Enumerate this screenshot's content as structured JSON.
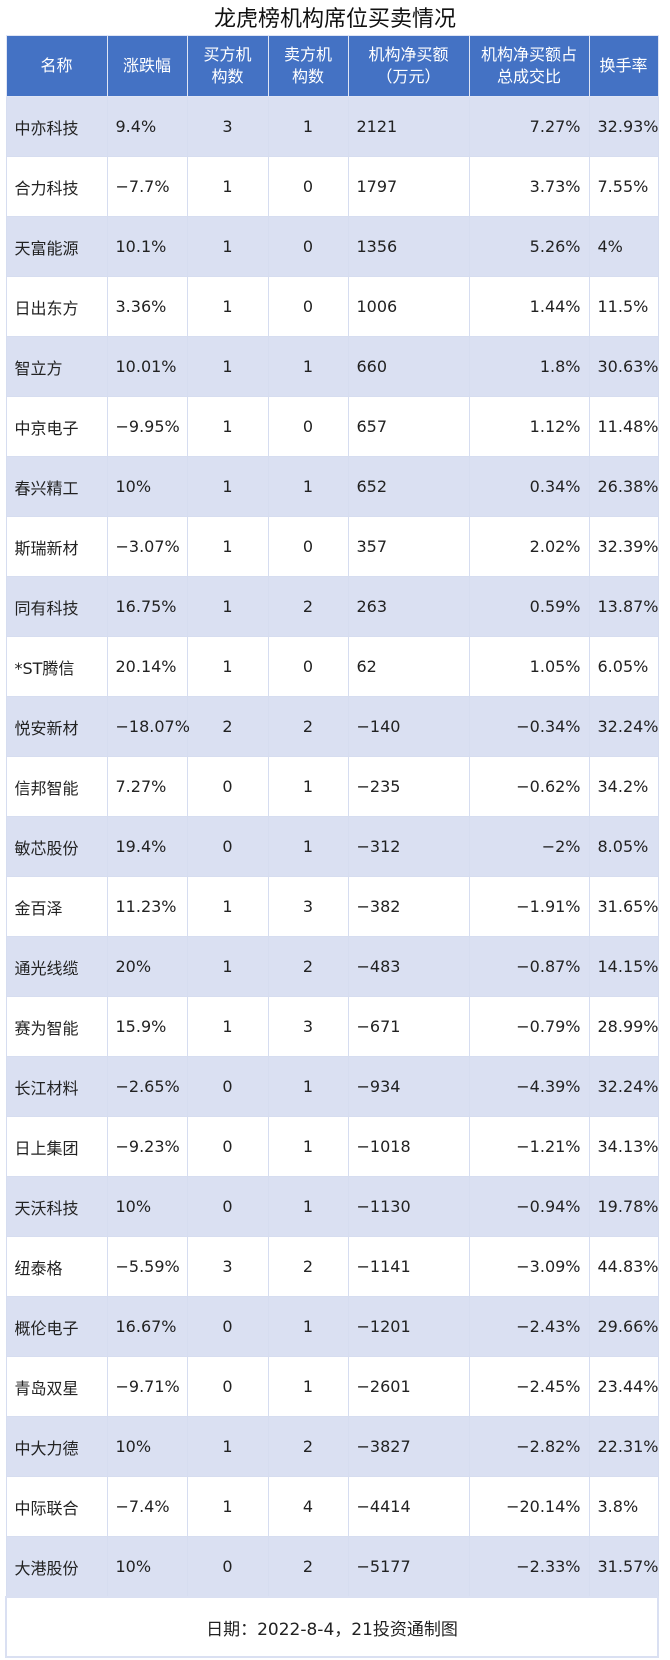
{
  "title": "龙虎榜机构席位买卖情况",
  "headers": [
    "名称",
    "涨跌幅",
    "买方机构数",
    "卖方机构数",
    "机构净买额（万元）",
    "机构净买额占总成交比",
    "换手率"
  ],
  "header_lines": [
    [
      "名称"
    ],
    [
      "涨跌幅"
    ],
    [
      "买方机",
      "构数"
    ],
    [
      "卖方机",
      "构数"
    ],
    [
      "机构净买额",
      "（万元）"
    ],
    [
      "机构净买额占",
      "总成交比"
    ],
    [
      "换手率"
    ]
  ],
  "rows": [
    [
      "中亦科技",
      "9.4%",
      "3",
      "1",
      "2121",
      "7.27%",
      "32.93%"
    ],
    [
      "合力科技",
      "−7.7%",
      "1",
      "0",
      "1797",
      "3.73%",
      "7.55%"
    ],
    [
      "天富能源",
      "10.1%",
      "1",
      "0",
      "1356",
      "5.26%",
      "4%"
    ],
    [
      "日出东方",
      "3.36%",
      "1",
      "0",
      "1006",
      "1.44%",
      "11.5%"
    ],
    [
      "智立方",
      "10.01%",
      "1",
      "1",
      "660",
      "1.8%",
      "30.63%"
    ],
    [
      "中京电子",
      "−9.95%",
      "1",
      "0",
      "657",
      "1.12%",
      "11.48%"
    ],
    [
      "春兴精工",
      "10%",
      "1",
      "1",
      "652",
      "0.34%",
      "26.38%"
    ],
    [
      "斯瑞新材",
      "−3.07%",
      "1",
      "0",
      "357",
      "2.02%",
      "32.39%"
    ],
    [
      "同有科技",
      "16.75%",
      "1",
      "2",
      "263",
      "0.59%",
      "13.87%"
    ],
    [
      "*ST腾信",
      "20.14%",
      "1",
      "0",
      "62",
      "1.05%",
      "6.05%"
    ],
    [
      "悦安新材",
      "−18.07%",
      "2",
      "2",
      "−140",
      "−0.34%",
      "32.24%"
    ],
    [
      "信邦智能",
      "7.27%",
      "0",
      "1",
      "−235",
      "−0.62%",
      "34.2%"
    ],
    [
      "敏芯股份",
      "19.4%",
      "0",
      "1",
      "−312",
      "−2%",
      "8.05%"
    ],
    [
      "金百泽",
      "11.23%",
      "1",
      "3",
      "−382",
      "−1.91%",
      "31.65%"
    ],
    [
      "通光线缆",
      "20%",
      "1",
      "2",
      "−483",
      "−0.87%",
      "14.15%"
    ],
    [
      "赛为智能",
      "15.9%",
      "1",
      "3",
      "−671",
      "−0.79%",
      "28.99%"
    ],
    [
      "长江材料",
      "−2.65%",
      "0",
      "1",
      "−934",
      "−4.39%",
      "32.24%"
    ],
    [
      "日上集团",
      "−9.23%",
      "0",
      "1",
      "−1018",
      "−1.21%",
      "34.13%"
    ],
    [
      "天沃科技",
      "10%",
      "0",
      "1",
      "−1130",
      "−0.94%",
      "19.78%"
    ],
    [
      "纽泰格",
      "−5.59%",
      "3",
      "2",
      "−1141",
      "−3.09%",
      "44.83%"
    ],
    [
      "概伦电子",
      "16.67%",
      "0",
      "1",
      "−1201",
      "−2.43%",
      "29.66%"
    ],
    [
      "青岛双星",
      "−9.71%",
      "0",
      "1",
      "−2601",
      "−2.45%",
      "23.44%"
    ],
    [
      "中大力德",
      "10%",
      "1",
      "2",
      "−3827",
      "−2.82%",
      "22.31%"
    ],
    [
      "中际联合",
      "−7.4%",
      "1",
      "4",
      "−4414",
      "−20.14%",
      "3.8%"
    ],
    [
      "大港股份",
      "10%",
      "0",
      "2",
      "−5177",
      "−2.33%",
      "31.57%"
    ]
  ],
  "footer": "日期：2022-8-4，21投资通制图",
  "colors": {
    "header_bg": "#4472c4",
    "odd_row_bg": "#dae0f2"
  }
}
